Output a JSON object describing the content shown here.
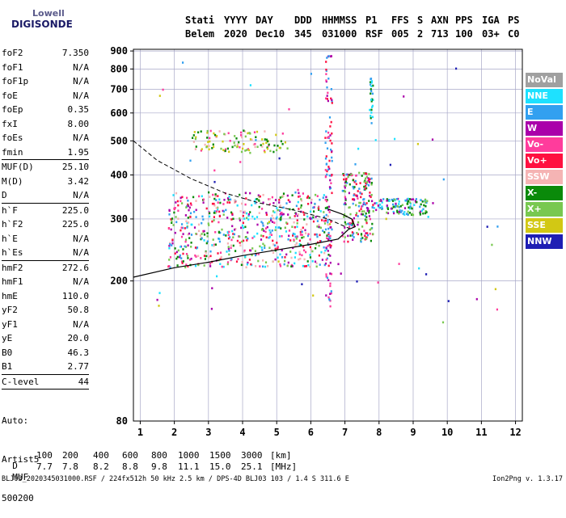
{
  "logo": {
    "line1": "Lowell",
    "line2": "DIGISONDE"
  },
  "header": {
    "labels": [
      "Stati",
      "YYYY",
      "DAY",
      "DDD",
      "HHMMSS",
      "P1",
      "FFS",
      "S",
      "AXN",
      "PPS",
      "IGA",
      "PS"
    ],
    "values": [
      "Belem",
      "2020",
      "Dec10",
      "345",
      "031000",
      "RSF",
      "005",
      "2",
      "713",
      "100",
      "03+",
      "C0"
    ]
  },
  "params": [
    {
      "name": "foF2",
      "value": "7.350"
    },
    {
      "name": "foF1",
      "value": "N/A"
    },
    {
      "name": "foF1p",
      "value": "N/A"
    },
    {
      "name": "foE",
      "value": "N/A"
    },
    {
      "name": "foEp",
      "value": "0.35"
    },
    {
      "name": "fxI",
      "value": "8.00"
    },
    {
      "name": "foEs",
      "value": "N/A"
    },
    {
      "name": "fmin",
      "value": "1.95",
      "sep": true
    },
    {
      "name": "MUF(D)",
      "value": "25.10"
    },
    {
      "name": "M(D)",
      "value": "3.42"
    },
    {
      "name": "D",
      "value": "N/A",
      "sep": true
    },
    {
      "name": "h`F",
      "value": "225.0"
    },
    {
      "name": "h`F2",
      "value": "225.0"
    },
    {
      "name": "h`E",
      "value": "N/A"
    },
    {
      "name": "h`Es",
      "value": "N/A",
      "sep": true
    },
    {
      "name": "hmF2",
      "value": "272.6"
    },
    {
      "name": "hmF1",
      "value": "N/A"
    },
    {
      "name": "hmE",
      "value": "110.0"
    },
    {
      "name": "yF2",
      "value": "50.8"
    },
    {
      "name": "yF1",
      "value": "N/A"
    },
    {
      "name": "yE",
      "value": "20.0"
    },
    {
      "name": "B0",
      "value": "46.3"
    },
    {
      "name": "B1",
      "value": "2.77",
      "sep": true
    },
    {
      "name": "C-level",
      "value": "44",
      "sep": true
    }
  ],
  "auto": {
    "line1": "Auto:",
    "line2": "Artist5",
    "line3": "500200"
  },
  "legend": [
    {
      "label": "NoVal",
      "color": "#a0a0a0"
    },
    {
      "label": "NNE",
      "color": "#1ee1ff"
    },
    {
      "label": "E",
      "color": "#32a0f0"
    },
    {
      "label": "W",
      "color": "#aa00aa"
    },
    {
      "label": "Vo-",
      "color": "#ff3c9c"
    },
    {
      "label": "Vo+",
      "color": "#ff1040"
    },
    {
      "label": "SSW",
      "color": "#f5b4b4"
    },
    {
      "label": "X-",
      "color": "#0a8a0a"
    },
    {
      "label": "X+",
      "color": "#78c850"
    },
    {
      "label": "SSE",
      "color": "#d2c814"
    },
    {
      "label": "NNW",
      "color": "#1e1eb4"
    }
  ],
  "muf_table": {
    "d_label": "D",
    "d_values": [
      "100",
      "200",
      "400",
      "600",
      "800",
      "1000",
      "1500",
      "3000"
    ],
    "d_unit": "[km]",
    "muf_label": "MUF",
    "muf_values": [
      "7.7",
      "7.8",
      "8.2",
      "8.8",
      "9.8",
      "11.1",
      "15.0",
      "25.1"
    ],
    "muf_unit": "[MHz]"
  },
  "footer": "BLJ03_2020345031000.RSF / 224fx512h 50 kHz 2.5 km / DPS-4D BLJ03 103 / 1.4 S 311.6 E",
  "version": "Ion2Png v. 1.3.17",
  "chart_data": {
    "type": "scatter",
    "x_ticks": [
      "1",
      "2",
      "3",
      "4",
      "5",
      "6",
      "7",
      "8",
      "9",
      "10",
      "11",
      "12"
    ],
    "y_ticks": [
      "200",
      "300",
      "400",
      "500",
      "600",
      "700",
      "800",
      "900"
    ],
    "x_range": [
      0.8,
      12.2
    ],
    "y_range": [
      80,
      910
    ],
    "grid": true,
    "y_scale": "log",
    "solid_trace": {
      "x": [
        0.8,
        2,
        3,
        4,
        5,
        6,
        6.8,
        7.1,
        7.3,
        7.2,
        6.9,
        6.5
      ],
      "y": [
        205,
        218,
        226,
        236,
        245,
        254,
        263,
        280,
        285,
        300,
        310,
        320
      ]
    },
    "dashed_trace": {
      "x": [
        0.8,
        1.5,
        2.5,
        3.5,
        4.5,
        5.5,
        6.5,
        7.2
      ],
      "y": [
        500,
        440,
        390,
        355,
        333,
        318,
        300,
        280
      ]
    },
    "clusters": [
      {
        "x": [
          1.8,
          6.5
        ],
        "y": [
          220,
          360
        ],
        "n": 650,
        "colors": [
          "#ff1040",
          "#ff3c9c",
          "#aa00aa",
          "#32a0f0",
          "#1ee1ff",
          "#f5b4b4",
          "#0a8a0a",
          "#78c850"
        ]
      },
      {
        "x": [
          6.9,
          7.8
        ],
        "y": [
          260,
          410
        ],
        "n": 200,
        "colors": [
          "#ff1040",
          "#ff3c9c",
          "#aa00aa",
          "#78c850",
          "#0a8a0a",
          "#32a0f0"
        ]
      },
      {
        "x": [
          7.8,
          9.4
        ],
        "y": [
          310,
          345
        ],
        "n": 120,
        "colors": [
          "#32a0f0",
          "#1ee1ff",
          "#0a8a0a",
          "#78c850",
          "#aa00aa"
        ]
      },
      {
        "x": [
          2.5,
          5.3
        ],
        "y": [
          465,
          540
        ],
        "n": 110,
        "colors": [
          "#0a8a0a",
          "#78c850",
          "#f5b4b4",
          "#ff3c9c",
          "#d2c814"
        ]
      },
      {
        "x": [
          6.4,
          6.6
        ],
        "y": [
          170,
          880
        ],
        "n": 120,
        "colors": [
          "#aa00aa",
          "#ff3c9c",
          "#ff1040",
          "#32a0f0"
        ]
      },
      {
        "x": [
          7.7,
          7.8
        ],
        "y": [
          560,
          760
        ],
        "n": 25,
        "colors": [
          "#32a0f0",
          "#1ee1ff",
          "#0a8a0a"
        ]
      },
      {
        "x": [
          1.0,
          12.0
        ],
        "y": [
          150,
          880
        ],
        "n": 60,
        "colors": [
          "#32a0f0",
          "#1ee1ff",
          "#aa00aa",
          "#ff3c9c",
          "#78c850",
          "#d2c814",
          "#1e1eb4"
        ]
      }
    ]
  }
}
